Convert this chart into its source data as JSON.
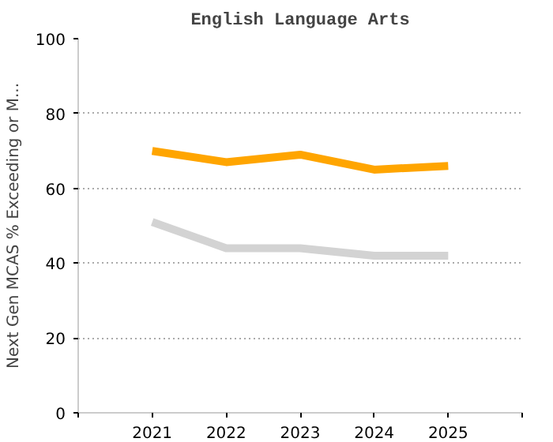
{
  "chart_data": {
    "type": "line",
    "title": "English Language Arts",
    "ylabel": "Next Gen MCAS % Exceeding or M...",
    "x": [
      2021,
      2022,
      2023,
      2024,
      2025
    ],
    "series": [
      {
        "color": "#ffa500",
        "values": [
          70,
          67,
          69,
          65,
          66
        ]
      },
      {
        "color": "#d3d3d3",
        "values": [
          51,
          44,
          44,
          42,
          42
        ]
      }
    ],
    "xlim": [
      2020,
      2026
    ],
    "xticks": [
      {
        "value": 2020,
        "label": null
      },
      2021,
      2022,
      2023,
      2024,
      2025,
      {
        "value": 2026,
        "label": null
      }
    ],
    "ylim": [
      0,
      100
    ],
    "yticks": [
      0,
      20,
      40,
      60,
      80,
      100
    ],
    "grid": "y",
    "line_style": "solid",
    "marker": "none"
  }
}
